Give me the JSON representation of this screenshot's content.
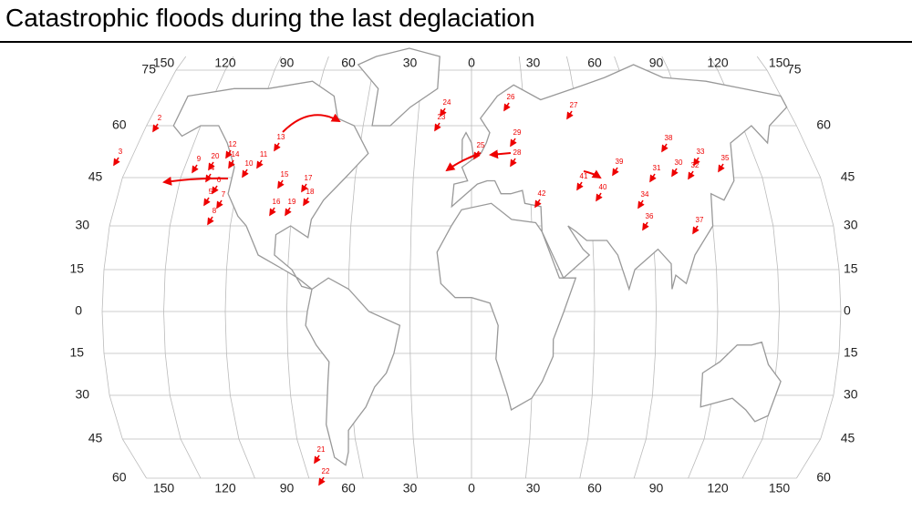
{
  "title": "Catastrophic floods during the last deglaciation",
  "map": {
    "longitude_labels_top": [
      150,
      120,
      90,
      60,
      30,
      0,
      30,
      60,
      90,
      120,
      150
    ],
    "longitude_labels_bottom": [
      150,
      120,
      90,
      60,
      30,
      0,
      30,
      60,
      90,
      120,
      150
    ],
    "latitude_labels_left": [
      75,
      60,
      45,
      30,
      15,
      0,
      15,
      30,
      45,
      60
    ],
    "latitude_labels_right": [
      75,
      60,
      45,
      30,
      15,
      0,
      15,
      30,
      45,
      60
    ],
    "flood_labels": [
      "2",
      "3",
      "4",
      "5",
      "6",
      "7",
      "8",
      "9",
      "10",
      "11",
      "12",
      "13",
      "14",
      "15",
      "16",
      "17",
      "18",
      "19",
      "20",
      "21",
      "22",
      "23",
      "24",
      "25",
      "26",
      "27",
      "28",
      "29",
      "30",
      "31",
      "32",
      "33",
      "34",
      "35",
      "36",
      "37",
      "38",
      "39",
      "40",
      "41",
      "42"
    ]
  }
}
